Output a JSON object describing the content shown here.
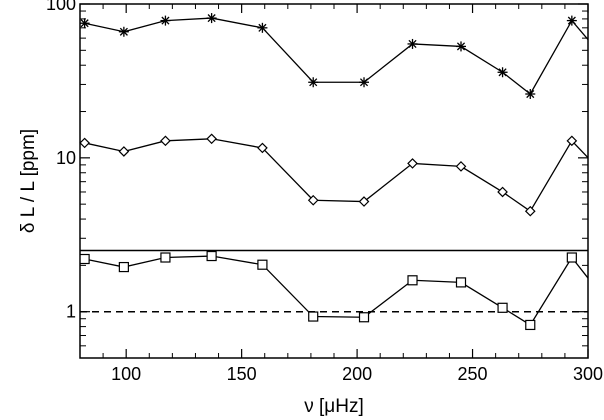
{
  "chart_data": {
    "type": "line",
    "xlabel": "ν [μHz]",
    "ylabel": "δ L / L [ppm]",
    "yscale": "log",
    "xlim": [
      80,
      300
    ],
    "ylim": [
      0.5,
      100
    ],
    "grid": false,
    "x_ticks": [
      100,
      150,
      200,
      250,
      300
    ],
    "x_tick_labels": [
      "100",
      "150",
      "200",
      "250",
      "300"
    ],
    "y_ticks": [
      1,
      10,
      100
    ],
    "y_tick_labels": [
      "1",
      "10",
      "100"
    ],
    "reference_line": {
      "y": 1,
      "style": "dashed"
    },
    "separator_line": {
      "y": 2.5,
      "style": "solid"
    },
    "x": [
      82,
      99,
      117,
      137,
      159,
      181,
      203,
      224,
      245,
      263,
      275,
      293,
      303
    ],
    "series": [
      {
        "marker": "asterisk",
        "values": [
          75,
          66,
          78,
          81,
          70,
          31,
          31,
          55,
          53,
          36,
          26,
          78,
          52
        ]
      },
      {
        "marker": "diamond",
        "values": [
          12.5,
          11,
          12.9,
          13.3,
          11.6,
          5.3,
          5.2,
          9.2,
          8.8,
          6.0,
          4.5,
          12.9,
          9.0
        ]
      },
      {
        "marker": "square",
        "values": [
          2.2,
          1.95,
          2.25,
          2.3,
          2.02,
          0.93,
          0.92,
          1.6,
          1.55,
          1.06,
          0.82,
          2.25,
          1.45
        ]
      }
    ]
  }
}
